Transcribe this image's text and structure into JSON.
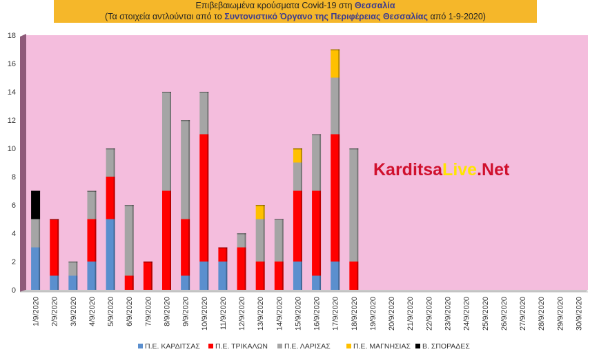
{
  "title": {
    "line1_prefix": "Επιβεβαιωμένα κρούσματα Covid-19 στη ",
    "line1_region": "Θεσσαλία",
    "line2_prefix": "(Τα στοιχεία αντλούνται από το ",
    "line2_source": "Συντονιστικό Όργανο της Περιφέρειας Θεσσαλίας",
    "line2_suffix": " από 1-9-2020)"
  },
  "watermark": {
    "part1": "Karditsa",
    "part2": "Live",
    "part3": ".Net"
  },
  "chart_data": {
    "type": "bar",
    "stacked": true,
    "categories": [
      "1/9/2020",
      "2/9/2020",
      "3/9/2020",
      "4/9/2020",
      "5/9/2020",
      "6/9/2020",
      "7/9/2020",
      "8/9/2020",
      "9/9/2020",
      "10/9/2020",
      "11/9/2020",
      "12/9/2020",
      "13/9/2020",
      "14/9/2020",
      "15/9/2020",
      "16/9/2020",
      "17/9/2020",
      "18/9/2020",
      "19/9/2020",
      "20/9/2020",
      "21/9/2020",
      "22/9/2020",
      "23/9/2020",
      "24/9/2020",
      "25/9/2020",
      "26/9/2020",
      "27/9/2020",
      "28/9/2020",
      "29/9/2020",
      "30/9/2020"
    ],
    "series": [
      {
        "name": "Π.Ε. ΚΑΡΔΙΤΣΑΣ",
        "color": "#5b8fce",
        "values": [
          3,
          1,
          1,
          2,
          5,
          0,
          0,
          0,
          1,
          2,
          2,
          0,
          0,
          0,
          2,
          1,
          2,
          0,
          0,
          0,
          0,
          0,
          0,
          0,
          0,
          0,
          0,
          0,
          0,
          0
        ]
      },
      {
        "name": "Π.Ε. ΤΡΙΚΑΛΩΝ",
        "color": "#ff0000",
        "values": [
          0,
          4,
          0,
          3,
          3,
          1,
          2,
          7,
          4,
          9,
          1,
          3,
          2,
          2,
          5,
          6,
          9,
          2,
          0,
          0,
          0,
          0,
          0,
          0,
          0,
          0,
          0,
          0,
          0,
          0
        ]
      },
      {
        "name": "Π.Ε. ΛΑΡΙΣΑΣ",
        "color": "#a5a5a5",
        "values": [
          2,
          0,
          1,
          2,
          2,
          5,
          0,
          7,
          7,
          3,
          0,
          1,
          3,
          3,
          2,
          4,
          4,
          8,
          0,
          0,
          0,
          0,
          0,
          0,
          0,
          0,
          0,
          0,
          0,
          0
        ]
      },
      {
        "name": "Π.Ε. ΜΑΓΝΗΣΙΑΣ",
        "color": "#ffc000",
        "values": [
          0,
          0,
          0,
          0,
          0,
          0,
          0,
          0,
          0,
          0,
          0,
          0,
          1,
          0,
          1,
          0,
          2,
          0,
          0,
          0,
          0,
          0,
          0,
          0,
          0,
          0,
          0,
          0,
          0,
          0
        ]
      },
      {
        "name": "Β. ΣΠΟΡΑΔΕΣ",
        "color": "#000000",
        "values": [
          2,
          0,
          0,
          0,
          0,
          0,
          0,
          0,
          0,
          0,
          0,
          0,
          0,
          0,
          0,
          0,
          0,
          0,
          0,
          0,
          0,
          0,
          0,
          0,
          0,
          0,
          0,
          0,
          0,
          0
        ]
      }
    ],
    "ylim": [
      0,
      18
    ],
    "yticks": [
      0,
      2,
      4,
      6,
      8,
      10,
      12,
      14,
      16,
      18
    ],
    "plot_background": "#f4bddd",
    "legend_position": "bottom",
    "xlabel": "",
    "ylabel": ""
  }
}
